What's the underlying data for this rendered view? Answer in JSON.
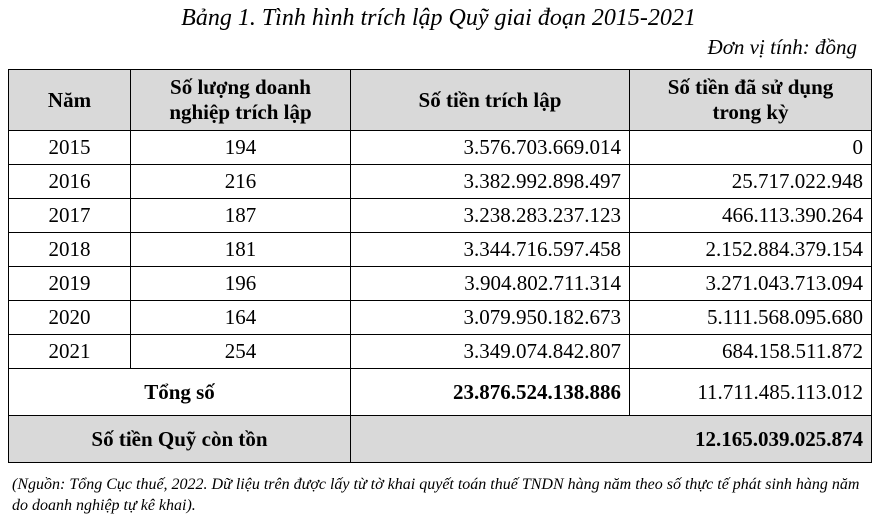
{
  "title": "Bảng 1. Tình hình trích lập Quỹ giai đoạn 2015-2021",
  "unit": "Đơn vị tính: đồng",
  "headers": {
    "year": "Năm",
    "count_line1": "Số lượng doanh",
    "count_line2": "nghiệp trích lập",
    "allocated": "Số tiền trích lập",
    "used_line1": "Số tiền đã sử dụng",
    "used_line2": "trong kỳ"
  },
  "rows": [
    {
      "year": "2015",
      "count": "194",
      "allocated": "3.576.703.669.014",
      "used": "0"
    },
    {
      "year": "2016",
      "count": "216",
      "allocated": "3.382.992.898.497",
      "used": "25.717.022.948"
    },
    {
      "year": "2017",
      "count": "187",
      "allocated": "3.238.283.237.123",
      "used": "466.113.390.264"
    },
    {
      "year": "2018",
      "count": "181",
      "allocated": "3.344.716.597.458",
      "used": "2.152.884.379.154"
    },
    {
      "year": "2019",
      "count": "196",
      "allocated": "3.904.802.711.314",
      "used": "3.271.043.713.094"
    },
    {
      "year": "2020",
      "count": "164",
      "allocated": "3.079.950.182.673",
      "used": "5.111.568.095.680"
    },
    {
      "year": "2021",
      "count": "254",
      "allocated": "3.349.074.842.807",
      "used": "684.158.511.872"
    }
  ],
  "total": {
    "label": "Tổng số",
    "allocated": "23.876.524.138.886",
    "used": "11.711.485.113.012"
  },
  "remaining": {
    "label": "Số tiền Quỹ còn tồn",
    "value": "12.165.039.025.874"
  },
  "note": "(Nguồn: Tổng Cục thuế, 2022. Dữ liệu trên được lấy từ tờ khai quyết toán thuế TNDN hàng năm theo số thực tế phát sinh hàng năm do doanh nghiệp tự kê khai)."
}
